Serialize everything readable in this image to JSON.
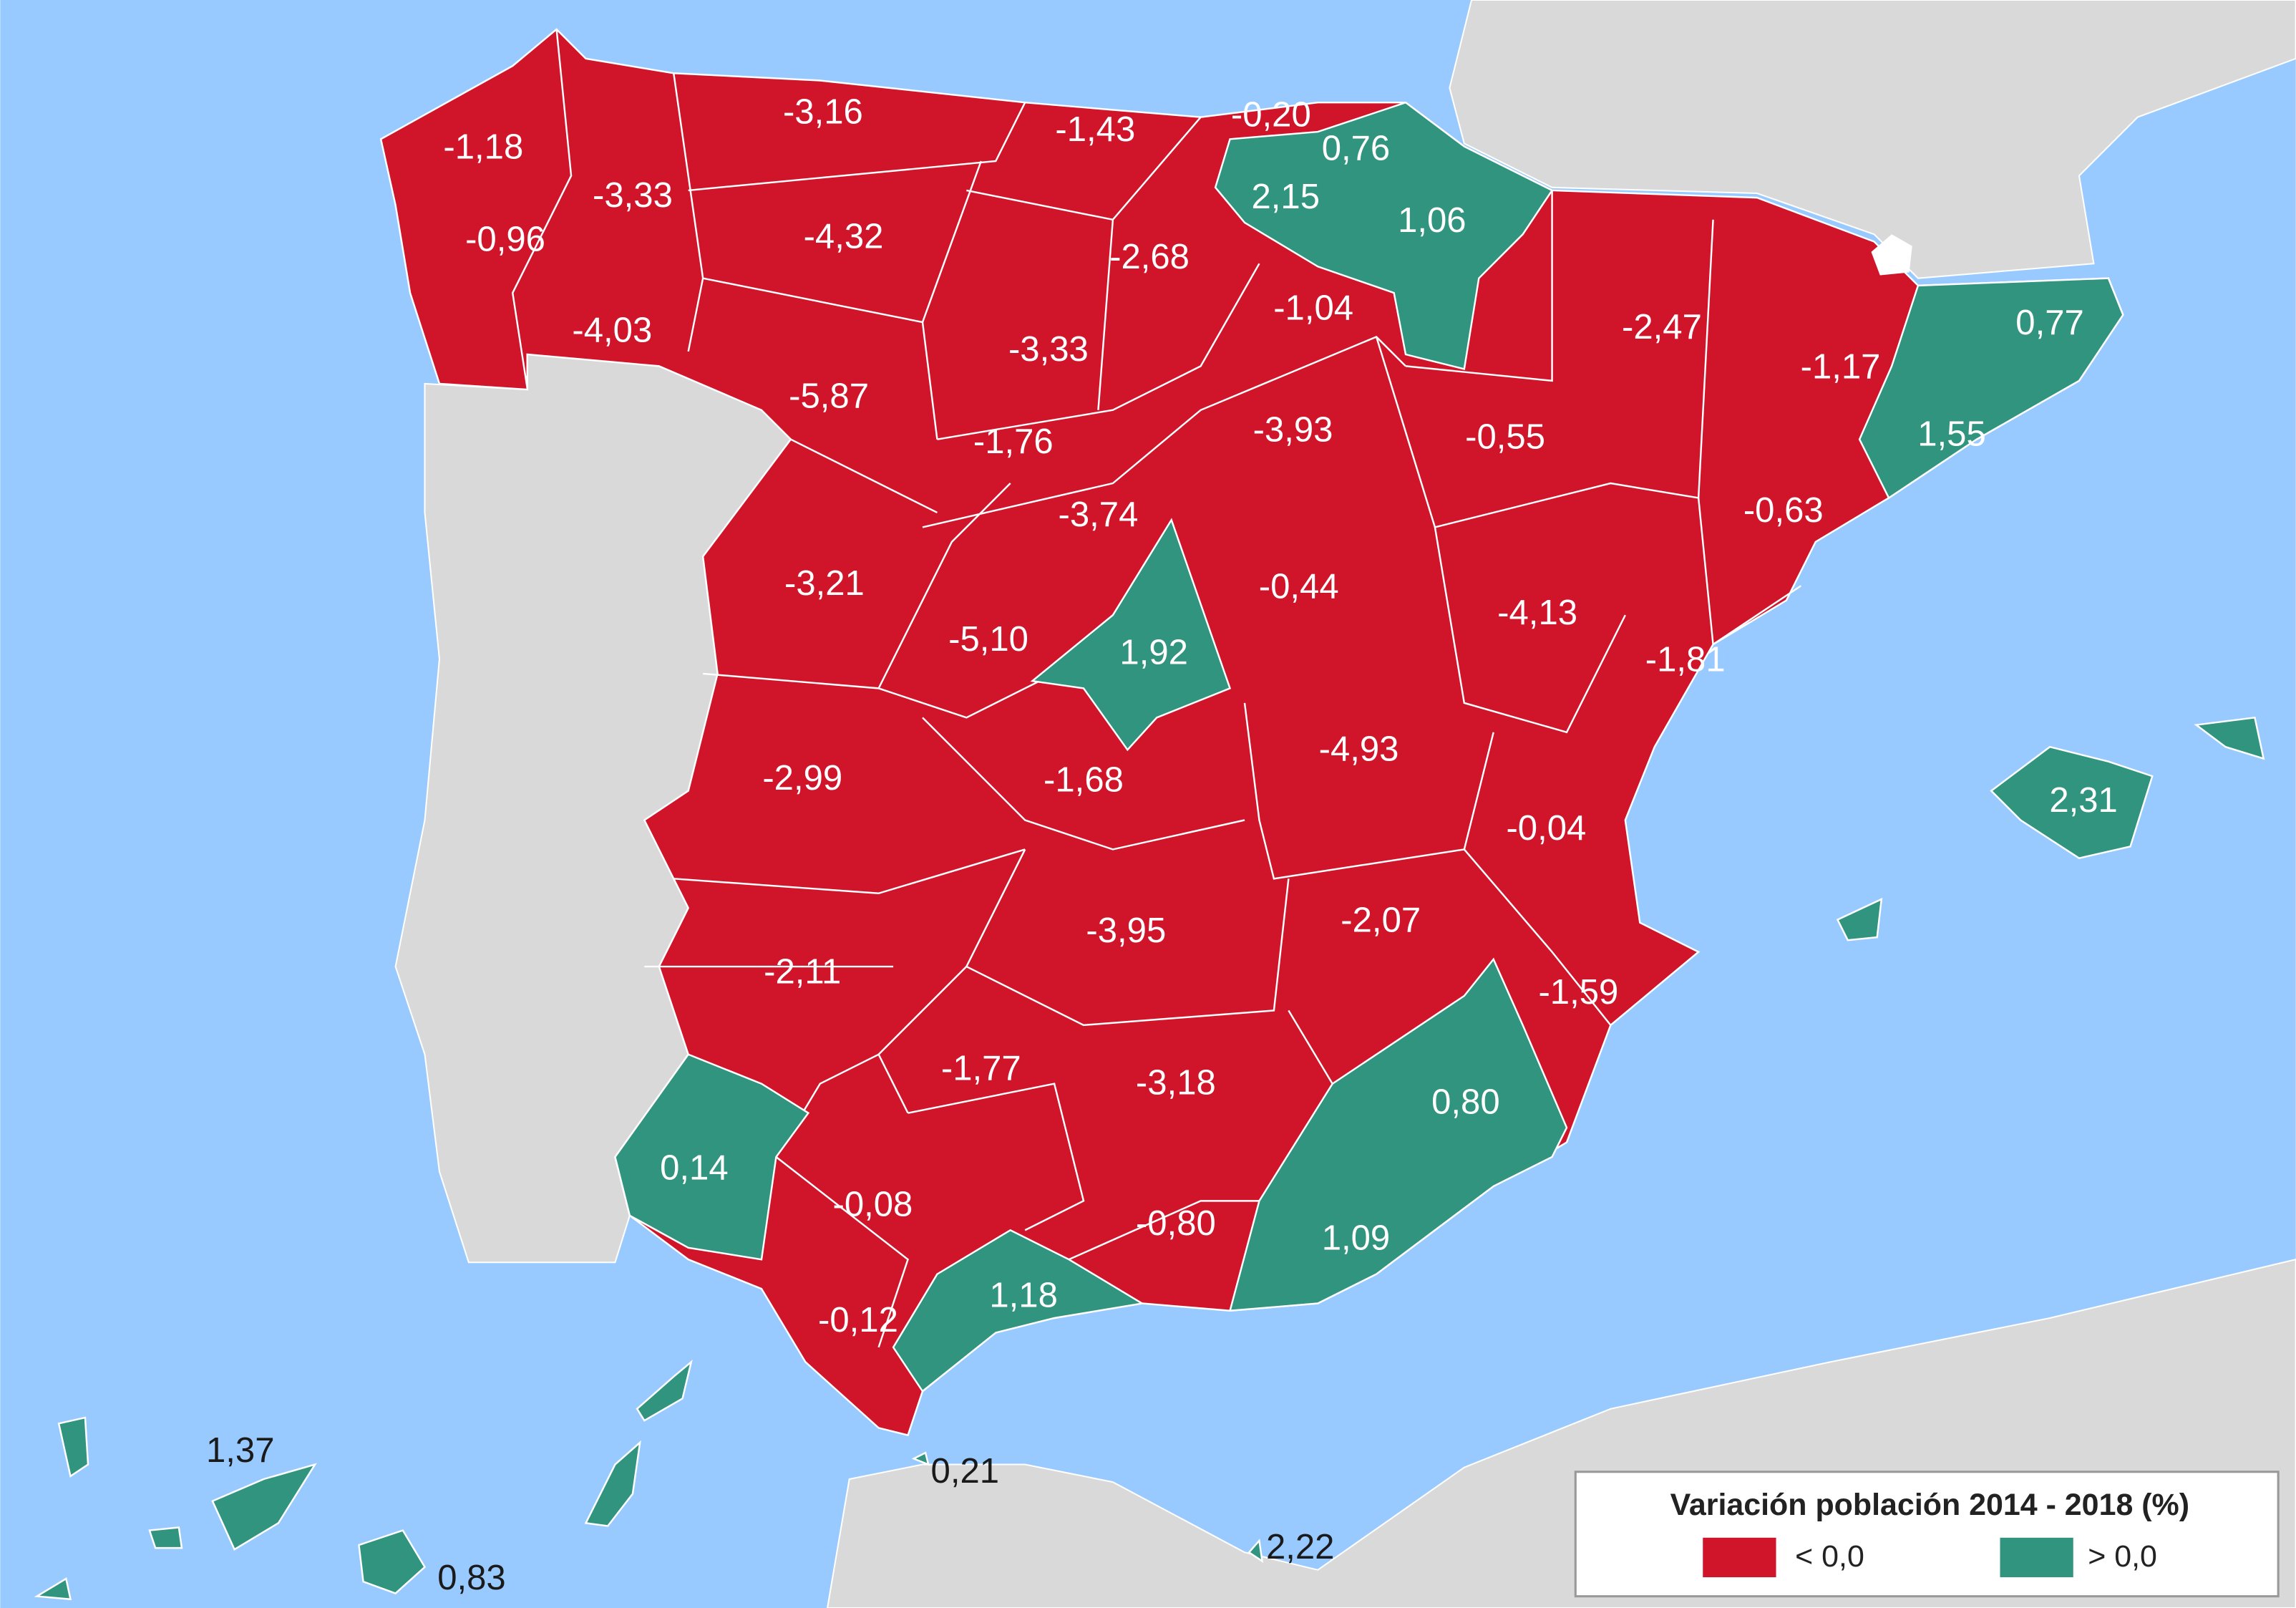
{
  "legend": {
    "title": "Variación población 2014 - 2018 (%)",
    "items": [
      {
        "label": "< 0,0",
        "color": "#d0152b"
      },
      {
        "label": "> 0,0",
        "color": "#31947e"
      }
    ]
  },
  "regions": [
    "-1,18",
    "-3,33",
    "-3,16",
    "-1,43",
    "-0,20",
    "0,76",
    "2,15",
    "1,06",
    "-0,96",
    "-4,32",
    "-2,68",
    "-1,04",
    "-4,03",
    "-3,33",
    "-2,47",
    "-1,17",
    "0,77",
    "-5,87",
    "-1,76",
    "-3,93",
    "-0,55",
    "1,55",
    "-0,63",
    "-3,74",
    "-3,21",
    "-0,44",
    "-4,13",
    "-5,10",
    "1,92",
    "-1,81",
    "-4,93",
    "-2,99",
    "-1,68",
    "-0,04",
    "2,31",
    "-3,95",
    "-2,07",
    "-2,11",
    "-1,59",
    "-1,77",
    "-3,18",
    "0,80",
    "0,14",
    "-0,08",
    "-0,80",
    "1,09",
    "1,18",
    "-0,12",
    "1,37",
    "0,21",
    "2,22",
    "0,83"
  ]
}
